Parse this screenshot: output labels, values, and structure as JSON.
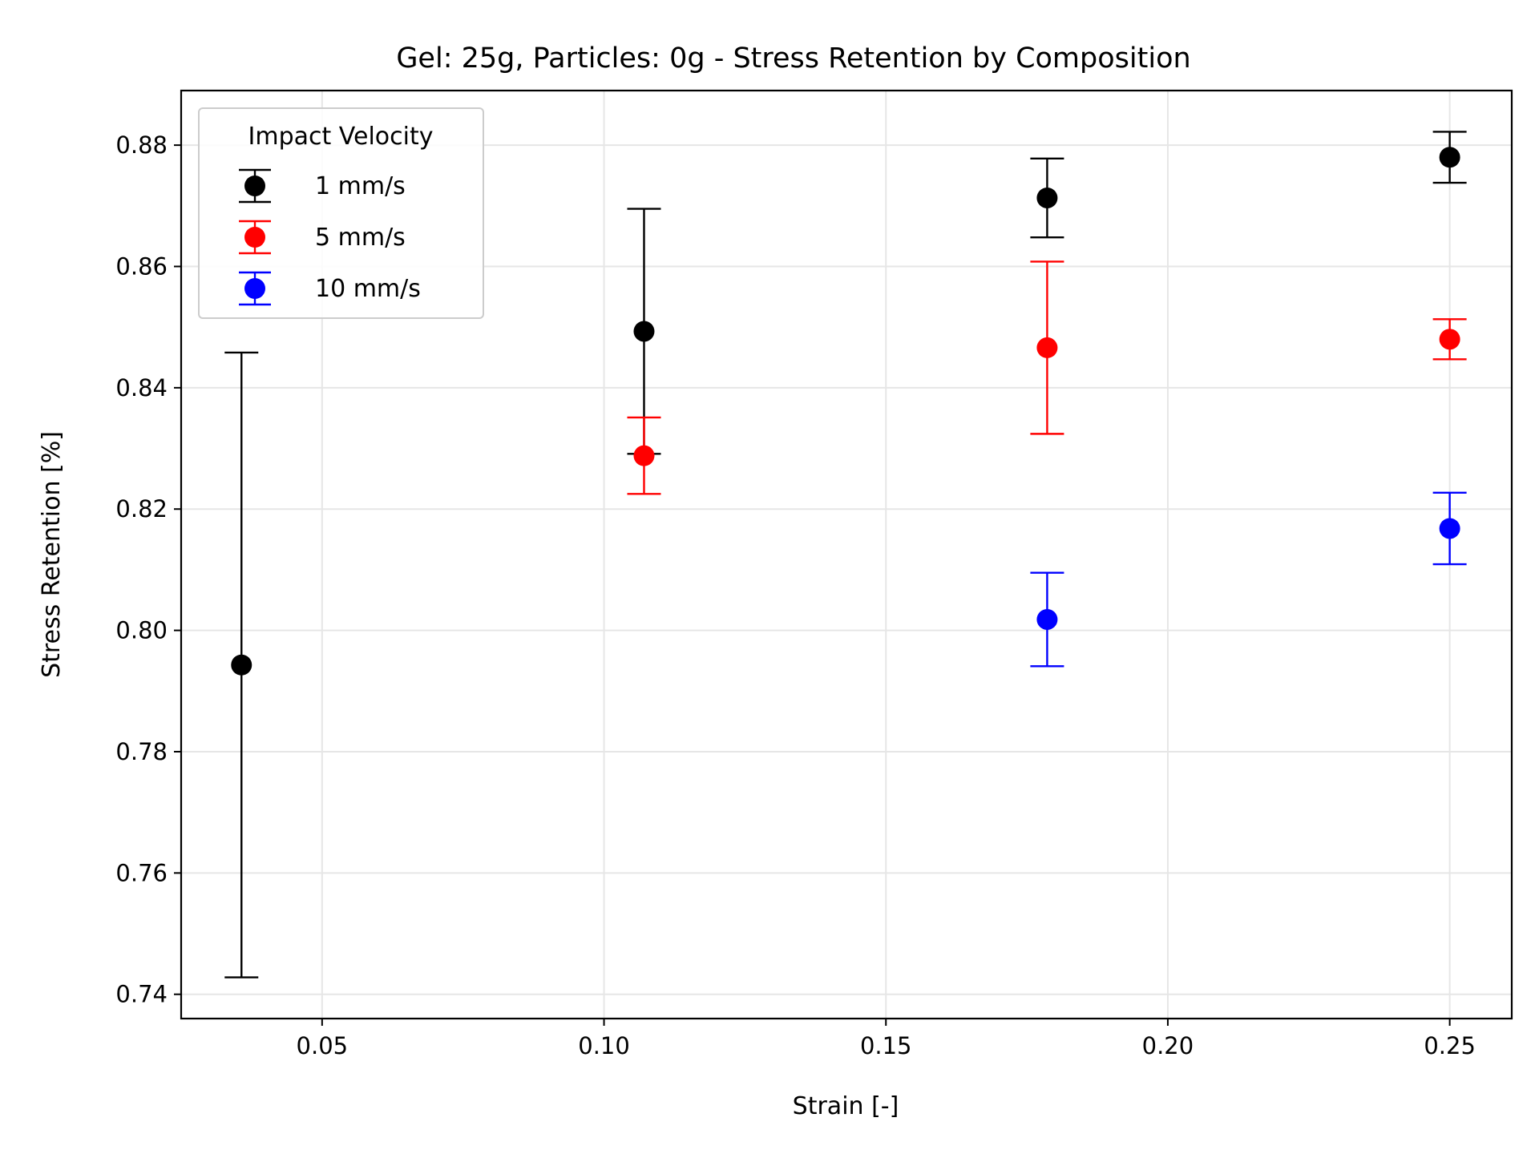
{
  "chart_data": {
    "type": "scatter",
    "title": "Gel: 25g, Particles: 0g - Stress Retention by Composition",
    "xlabel": "Strain [-]",
    "ylabel": "Stress Retention [%]",
    "xlim": [
      0.025,
      0.261
    ],
    "ylim": [
      0.736,
      0.889
    ],
    "xticks": [
      0.05,
      0.1,
      0.15,
      0.2,
      0.25
    ],
    "xtick_labels": [
      "0.05",
      "0.10",
      "0.15",
      "0.20",
      "0.25"
    ],
    "yticks": [
      0.74,
      0.76,
      0.78,
      0.8,
      0.82,
      0.84,
      0.86,
      0.88
    ],
    "ytick_labels": [
      "0.74",
      "0.76",
      "0.78",
      "0.80",
      "0.82",
      "0.84",
      "0.86",
      "0.88"
    ],
    "grid": true,
    "error_bars": true,
    "legend": {
      "title": "Impact Velocity",
      "placement": "top-left"
    },
    "series": [
      {
        "name": "1 mm/s",
        "color": "#000000",
        "x": [
          0.0357,
          0.1071,
          0.1786,
          0.25
        ],
        "y": [
          0.7943,
          0.8493,
          0.8713,
          0.878
        ],
        "err": [
          0.0515,
          0.0202,
          0.0065,
          0.0042
        ]
      },
      {
        "name": "5 mm/s",
        "color": "#ff0000",
        "x": [
          0.1071,
          0.1786,
          0.25
        ],
        "y": [
          0.8288,
          0.8466,
          0.848
        ],
        "err": [
          0.0063,
          0.0142,
          0.0033
        ]
      },
      {
        "name": "10 mm/s",
        "color": "#0000ff",
        "x": [
          0.1786,
          0.25
        ],
        "y": [
          0.8018,
          0.8168
        ],
        "err": [
          0.0077,
          0.0059
        ]
      }
    ]
  }
}
